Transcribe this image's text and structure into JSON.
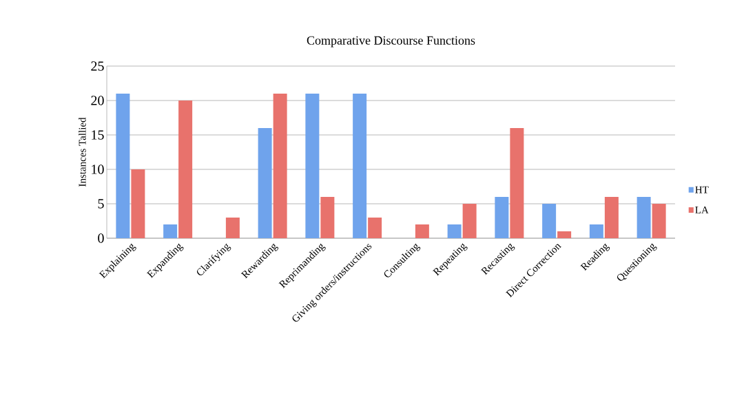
{
  "chart_data": {
    "type": "bar",
    "title": "Comparative Discourse Functions",
    "ylabel": "Instances Tallied",
    "categories": [
      "Explaining",
      "Expanding",
      "Clarifying",
      "Rewarding",
      "Reprimanding",
      "Giving orders/instructions",
      "Consulting",
      "Repeating",
      "Recasting",
      "Direct Correction",
      "Reading",
      "Questioning"
    ],
    "series": [
      {
        "name": "HT",
        "color": "#6fa3ec",
        "values": [
          21,
          2,
          0,
          16,
          21,
          21,
          0,
          2,
          6,
          5,
          2,
          6
        ]
      },
      {
        "name": "LA",
        "color": "#e8726c",
        "values": [
          10,
          20,
          3,
          21,
          6,
          3,
          2,
          5,
          16,
          1,
          6,
          5
        ]
      }
    ],
    "ylim": [
      0,
      25
    ],
    "yticks": [
      0,
      5,
      10,
      15,
      20,
      25
    ],
    "grid": "y",
    "legend": "right"
  }
}
